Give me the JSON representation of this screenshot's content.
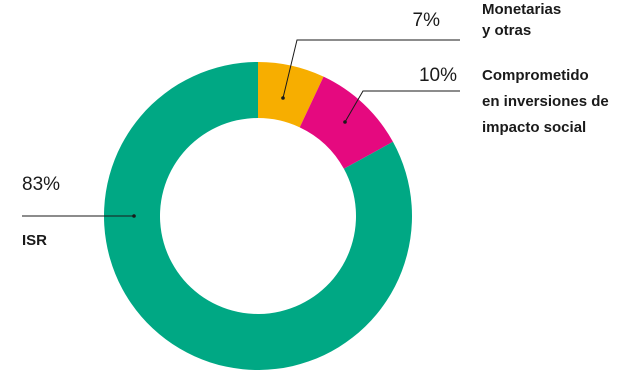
{
  "chart_data": {
    "type": "pie",
    "style": "donut",
    "slices": [
      {
        "label": [
          "Monetarias",
          "y otras"
        ],
        "value": 7,
        "value_label": "7%",
        "color": "#F7AE00"
      },
      {
        "label": [
          "Comprometido",
          "en inversiones de",
          "impacto social"
        ],
        "value": 10,
        "value_label": "10%",
        "color": "#E5097F"
      },
      {
        "label": [
          "ISR"
        ],
        "value": 83,
        "value_label": "83%",
        "color": "#00A884"
      }
    ]
  }
}
